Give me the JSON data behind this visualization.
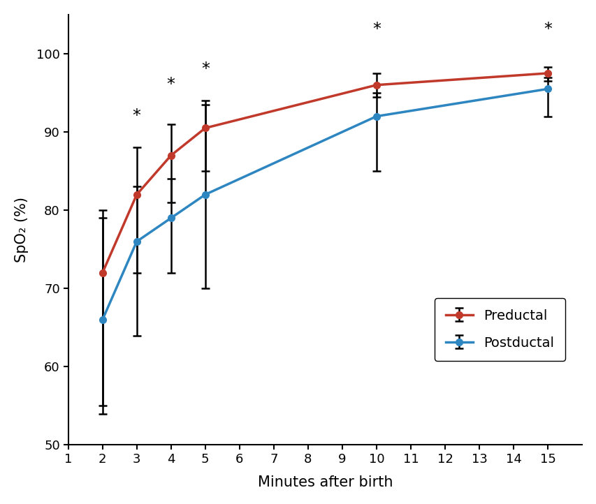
{
  "preductal_x": [
    2,
    3,
    4,
    5,
    10,
    15
  ],
  "preductal_y": [
    72,
    82,
    87,
    90.5,
    96,
    97.5
  ],
  "preductal_yerr_low": [
    18,
    10,
    6,
    5.5,
    1.5,
    1
  ],
  "preductal_yerr_high": [
    7,
    6,
    4,
    3,
    1.5,
    0.8
  ],
  "postductal_x": [
    2,
    3,
    4,
    5,
    10,
    15
  ],
  "postductal_y": [
    66,
    76,
    79,
    82,
    92,
    95.5
  ],
  "postductal_yerr_low": [
    11,
    12,
    7,
    12,
    7,
    3.5
  ],
  "postductal_yerr_high": [
    14,
    7,
    5,
    12,
    3,
    1.5
  ],
  "significant_x": [
    3,
    4,
    5,
    10,
    15
  ],
  "significant_y": [
    91,
    95,
    97,
    102,
    102
  ],
  "preductal_color": "#c0392b",
  "postductal_color": "#2e86c1",
  "line_width": 2.5,
  "marker_size": 7,
  "xlabel": "Minutes after birth",
  "ylabel": "SpO₂ (%)",
  "xlim": [
    1,
    16
  ],
  "ylim": [
    50,
    105
  ],
  "xticks": [
    1,
    2,
    3,
    4,
    5,
    6,
    7,
    8,
    9,
    10,
    11,
    12,
    13,
    14,
    15
  ],
  "yticks": [
    50,
    60,
    70,
    80,
    90,
    100
  ],
  "legend_preductal": "Preductal",
  "legend_postductal": "Postductal",
  "figsize": [
    8.54,
    7.22
  ],
  "dpi": 100
}
